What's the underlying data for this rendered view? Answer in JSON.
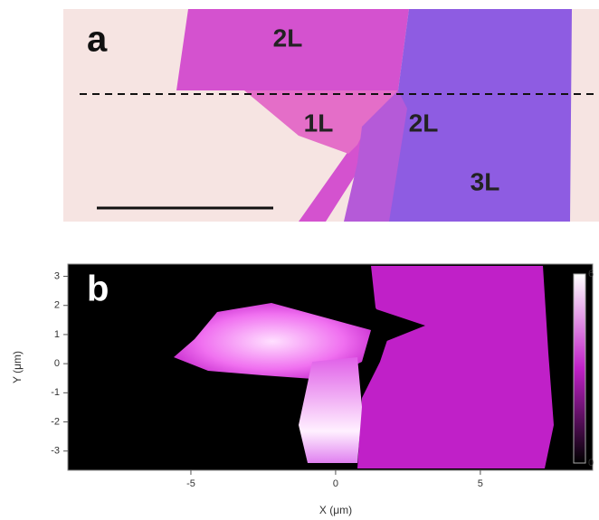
{
  "panel_a": {
    "label": "a",
    "regions": [
      "2L",
      "1L",
      "2L",
      "3L"
    ]
  },
  "panel_b": {
    "label": "b",
    "xlabel": "X (μm)",
    "ylabel": "Y (μm)",
    "xlim": [
      -9.25,
      8.88
    ],
    "ylim": [
      -3.66,
      3.42
    ],
    "xticks": [
      -5,
      0,
      5
    ],
    "yticks": [
      -3,
      -2,
      -1,
      0,
      1,
      2,
      3
    ],
    "colorbar": {
      "ticks": [
        0,
        6
      ]
    }
  }
}
